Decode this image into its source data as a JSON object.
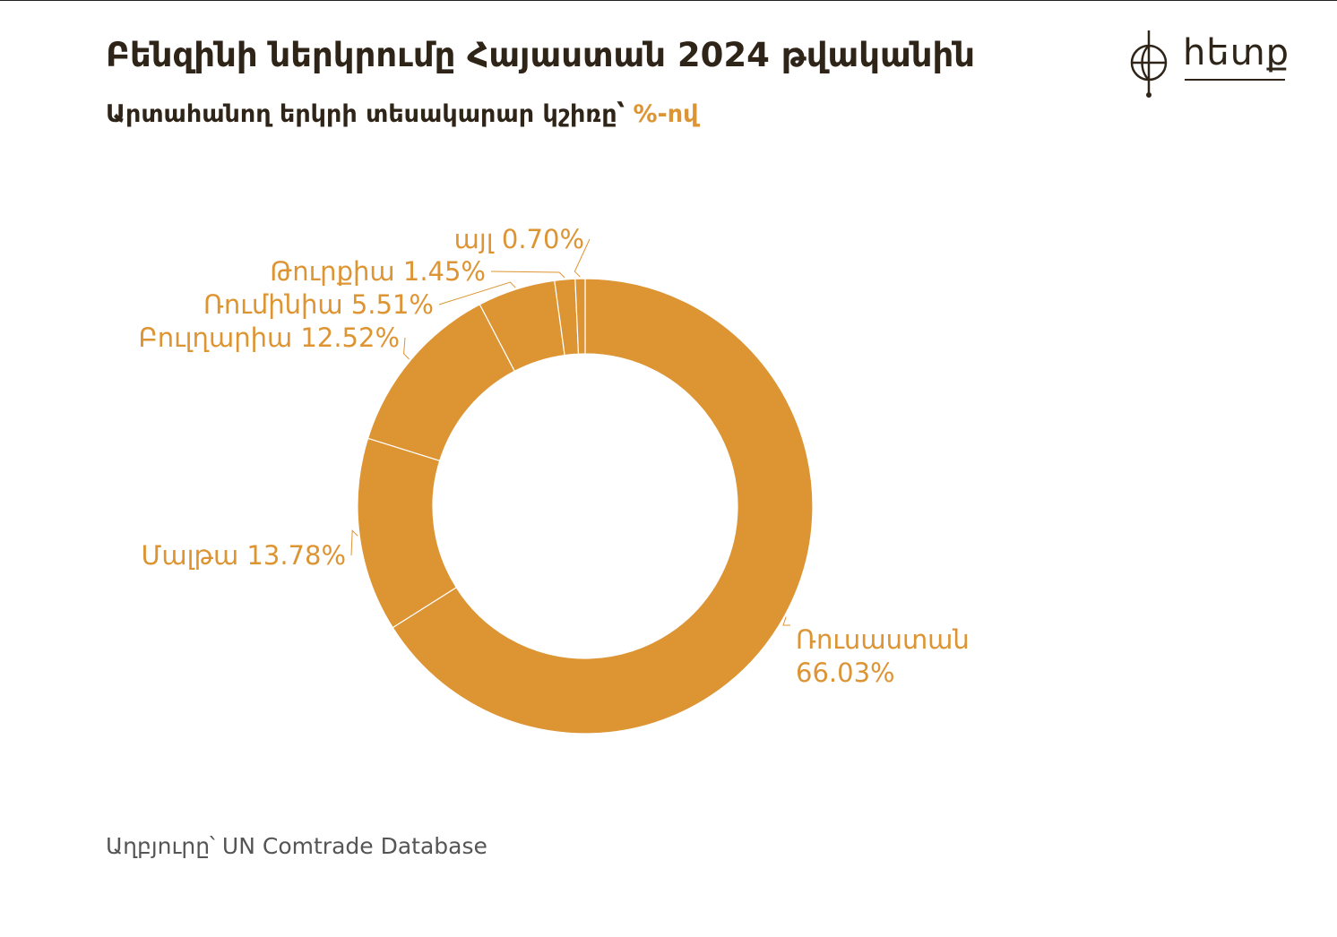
{
  "header": {
    "title": "Բենզինի ներկրումը Հայաստան 2024 թվականին",
    "subtitle": "Արտահանող երկրի տեսակարար կշիռը՝ ",
    "subtitle_unit": "%-ով"
  },
  "logo": {
    "text": "hետք",
    "icon": "globe-compass-icon"
  },
  "colors": {
    "accent": "#dd9433",
    "slice_border": "#ffffff",
    "title": "#2e2418",
    "source": "#555555"
  },
  "chart_data": {
    "type": "pie",
    "variant": "donut",
    "title": "Բենզինի ներկրումը Հայաստան 2024 թվականին",
    "subtitle": "Արտահանող երկրի տեսակարար կշիռը՝ %-ով",
    "unit": "%",
    "start": "top, clockwise",
    "slices": [
      {
        "label": "Ռուսաստան",
        "value": 66.03,
        "display": "66.03%"
      },
      {
        "label": "Մալթա",
        "value": 13.78,
        "display": "13.78%"
      },
      {
        "label": "Բուլղարիա",
        "value": 12.52,
        "display": "12.52%"
      },
      {
        "label": "Ռումինիա",
        "value": 5.51,
        "display": "5.51%"
      },
      {
        "label": "Թուրքիա",
        "value": 1.45,
        "display": "1.45%"
      },
      {
        "label": "այլ",
        "value": 0.7,
        "display": "0.70%"
      }
    ]
  },
  "footer": {
    "source": "Աղբյուրը՝  UN Comtrade Database"
  }
}
